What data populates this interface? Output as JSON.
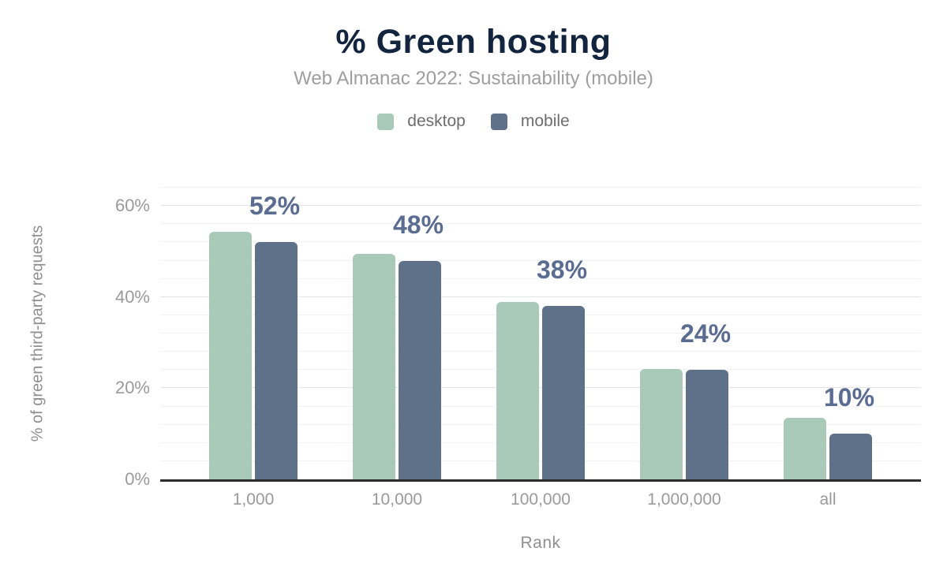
{
  "title": "% Green hosting",
  "subtitle": "Web Almanac 2022: Sustainability (mobile)",
  "legend": [
    {
      "label": "desktop",
      "color": "#a9cab9"
    },
    {
      "label": "mobile",
      "color": "#5f7189"
    }
  ],
  "chart_data": {
    "type": "bar",
    "title": "% Green hosting",
    "subtitle": "Web Almanac 2022: Sustainability (mobile)",
    "categories": [
      "1,000",
      "10,000",
      "100,000",
      "1,000,000",
      "all"
    ],
    "series": [
      {
        "name": "desktop",
        "color": "#a9cab9",
        "values": [
          54.4,
          49.4,
          38.9,
          24.3,
          13.5
        ]
      },
      {
        "name": "mobile",
        "color": "#5f7189",
        "values": [
          52,
          48,
          38,
          24,
          10
        ]
      }
    ],
    "bar_labels": [
      "52%",
      "48%",
      "38%",
      "24%",
      "10%"
    ],
    "bar_labels_series": "mobile",
    "bar_label_color": "#5a6c91",
    "xlabel": "Rank",
    "ylabel": "% of green third-party requests",
    "ylim": [
      0,
      65
    ],
    "yticks": [
      {
        "value": 0,
        "label": "0%"
      },
      {
        "value": 20,
        "label": "20%"
      },
      {
        "value": 40,
        "label": "40%"
      },
      {
        "value": 60,
        "label": "60%"
      }
    ],
    "minor_grid_step_pct": 4,
    "grid": true,
    "legend_position": "top"
  },
  "colors": {
    "title": "#13243f",
    "subtitle": "#9e9e9e",
    "tick_labels": "#9a9a9a",
    "axis_titles": "#8f8f8f",
    "axis_line": "#2d2d2d",
    "major_grid": "#e5e5e8",
    "minor_grid": "#f3f3f6",
    "background": "#ffffff"
  }
}
